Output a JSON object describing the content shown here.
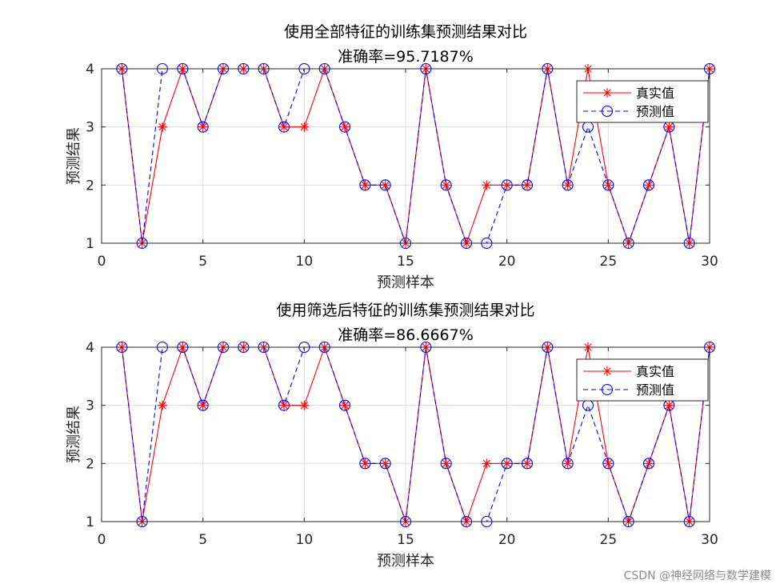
{
  "watermark": "CSDN @神经网络与数学建模",
  "chart_data": [
    {
      "type": "line",
      "title": "使用全部特征的训练集预测结果对比",
      "subtitle": "准确率=95.7187%",
      "xlabel": "预测样本",
      "ylabel": "预测结果",
      "xlim": [
        0,
        30
      ],
      "ylim": [
        1,
        4
      ],
      "xticks": [
        0,
        5,
        10,
        15,
        20,
        25,
        30
      ],
      "yticks": [
        1,
        2,
        3,
        4
      ],
      "grid": true,
      "legend_position": "top-right",
      "x": [
        1,
        2,
        3,
        4,
        5,
        6,
        7,
        8,
        9,
        10,
        11,
        12,
        13,
        14,
        15,
        16,
        17,
        18,
        19,
        20,
        21,
        22,
        23,
        24,
        25,
        26,
        27,
        28,
        29,
        30
      ],
      "series": [
        {
          "name": "真实值",
          "color": "#ff0000",
          "marker": "star",
          "linestyle": "solid",
          "values": [
            4,
            1,
            3,
            4,
            3,
            4,
            4,
            4,
            3,
            3,
            4,
            3,
            2,
            2,
            1,
            4,
            2,
            1,
            2,
            2,
            2,
            4,
            2,
            4,
            2,
            1,
            2,
            3,
            1,
            4
          ]
        },
        {
          "name": "预测值",
          "color": "#0000ff",
          "marker": "circle",
          "linestyle": "dashed",
          "values": [
            4,
            1,
            4,
            4,
            3,
            4,
            4,
            4,
            3,
            4,
            4,
            3,
            2,
            2,
            1,
            4,
            2,
            1,
            1,
            2,
            2,
            4,
            2,
            3,
            2,
            1,
            2,
            3,
            1,
            4
          ]
        }
      ]
    },
    {
      "type": "line",
      "title": "使用筛选后特征的训练集预测结果对比",
      "subtitle": "准确率=86.6667%",
      "xlabel": "预测样本",
      "ylabel": "预测结果",
      "xlim": [
        0,
        30
      ],
      "ylim": [
        1,
        4
      ],
      "xticks": [
        0,
        5,
        10,
        15,
        20,
        25,
        30
      ],
      "yticks": [
        1,
        2,
        3,
        4
      ],
      "grid": true,
      "legend_position": "top-right",
      "x": [
        1,
        2,
        3,
        4,
        5,
        6,
        7,
        8,
        9,
        10,
        11,
        12,
        13,
        14,
        15,
        16,
        17,
        18,
        19,
        20,
        21,
        22,
        23,
        24,
        25,
        26,
        27,
        28,
        29,
        30
      ],
      "series": [
        {
          "name": "真实值",
          "color": "#ff0000",
          "marker": "star",
          "linestyle": "solid",
          "values": [
            4,
            1,
            3,
            4,
            3,
            4,
            4,
            4,
            3,
            3,
            4,
            3,
            2,
            2,
            1,
            4,
            2,
            1,
            2,
            2,
            2,
            4,
            2,
            4,
            2,
            1,
            2,
            3,
            1,
            4
          ]
        },
        {
          "name": "预测值",
          "color": "#0000ff",
          "marker": "circle",
          "linestyle": "dashed",
          "values": [
            4,
            1,
            4,
            4,
            3,
            4,
            4,
            4,
            3,
            4,
            4,
            3,
            2,
            2,
            1,
            4,
            2,
            1,
            1,
            2,
            2,
            4,
            2,
            3,
            2,
            1,
            2,
            3,
            1,
            4
          ]
        }
      ]
    }
  ]
}
